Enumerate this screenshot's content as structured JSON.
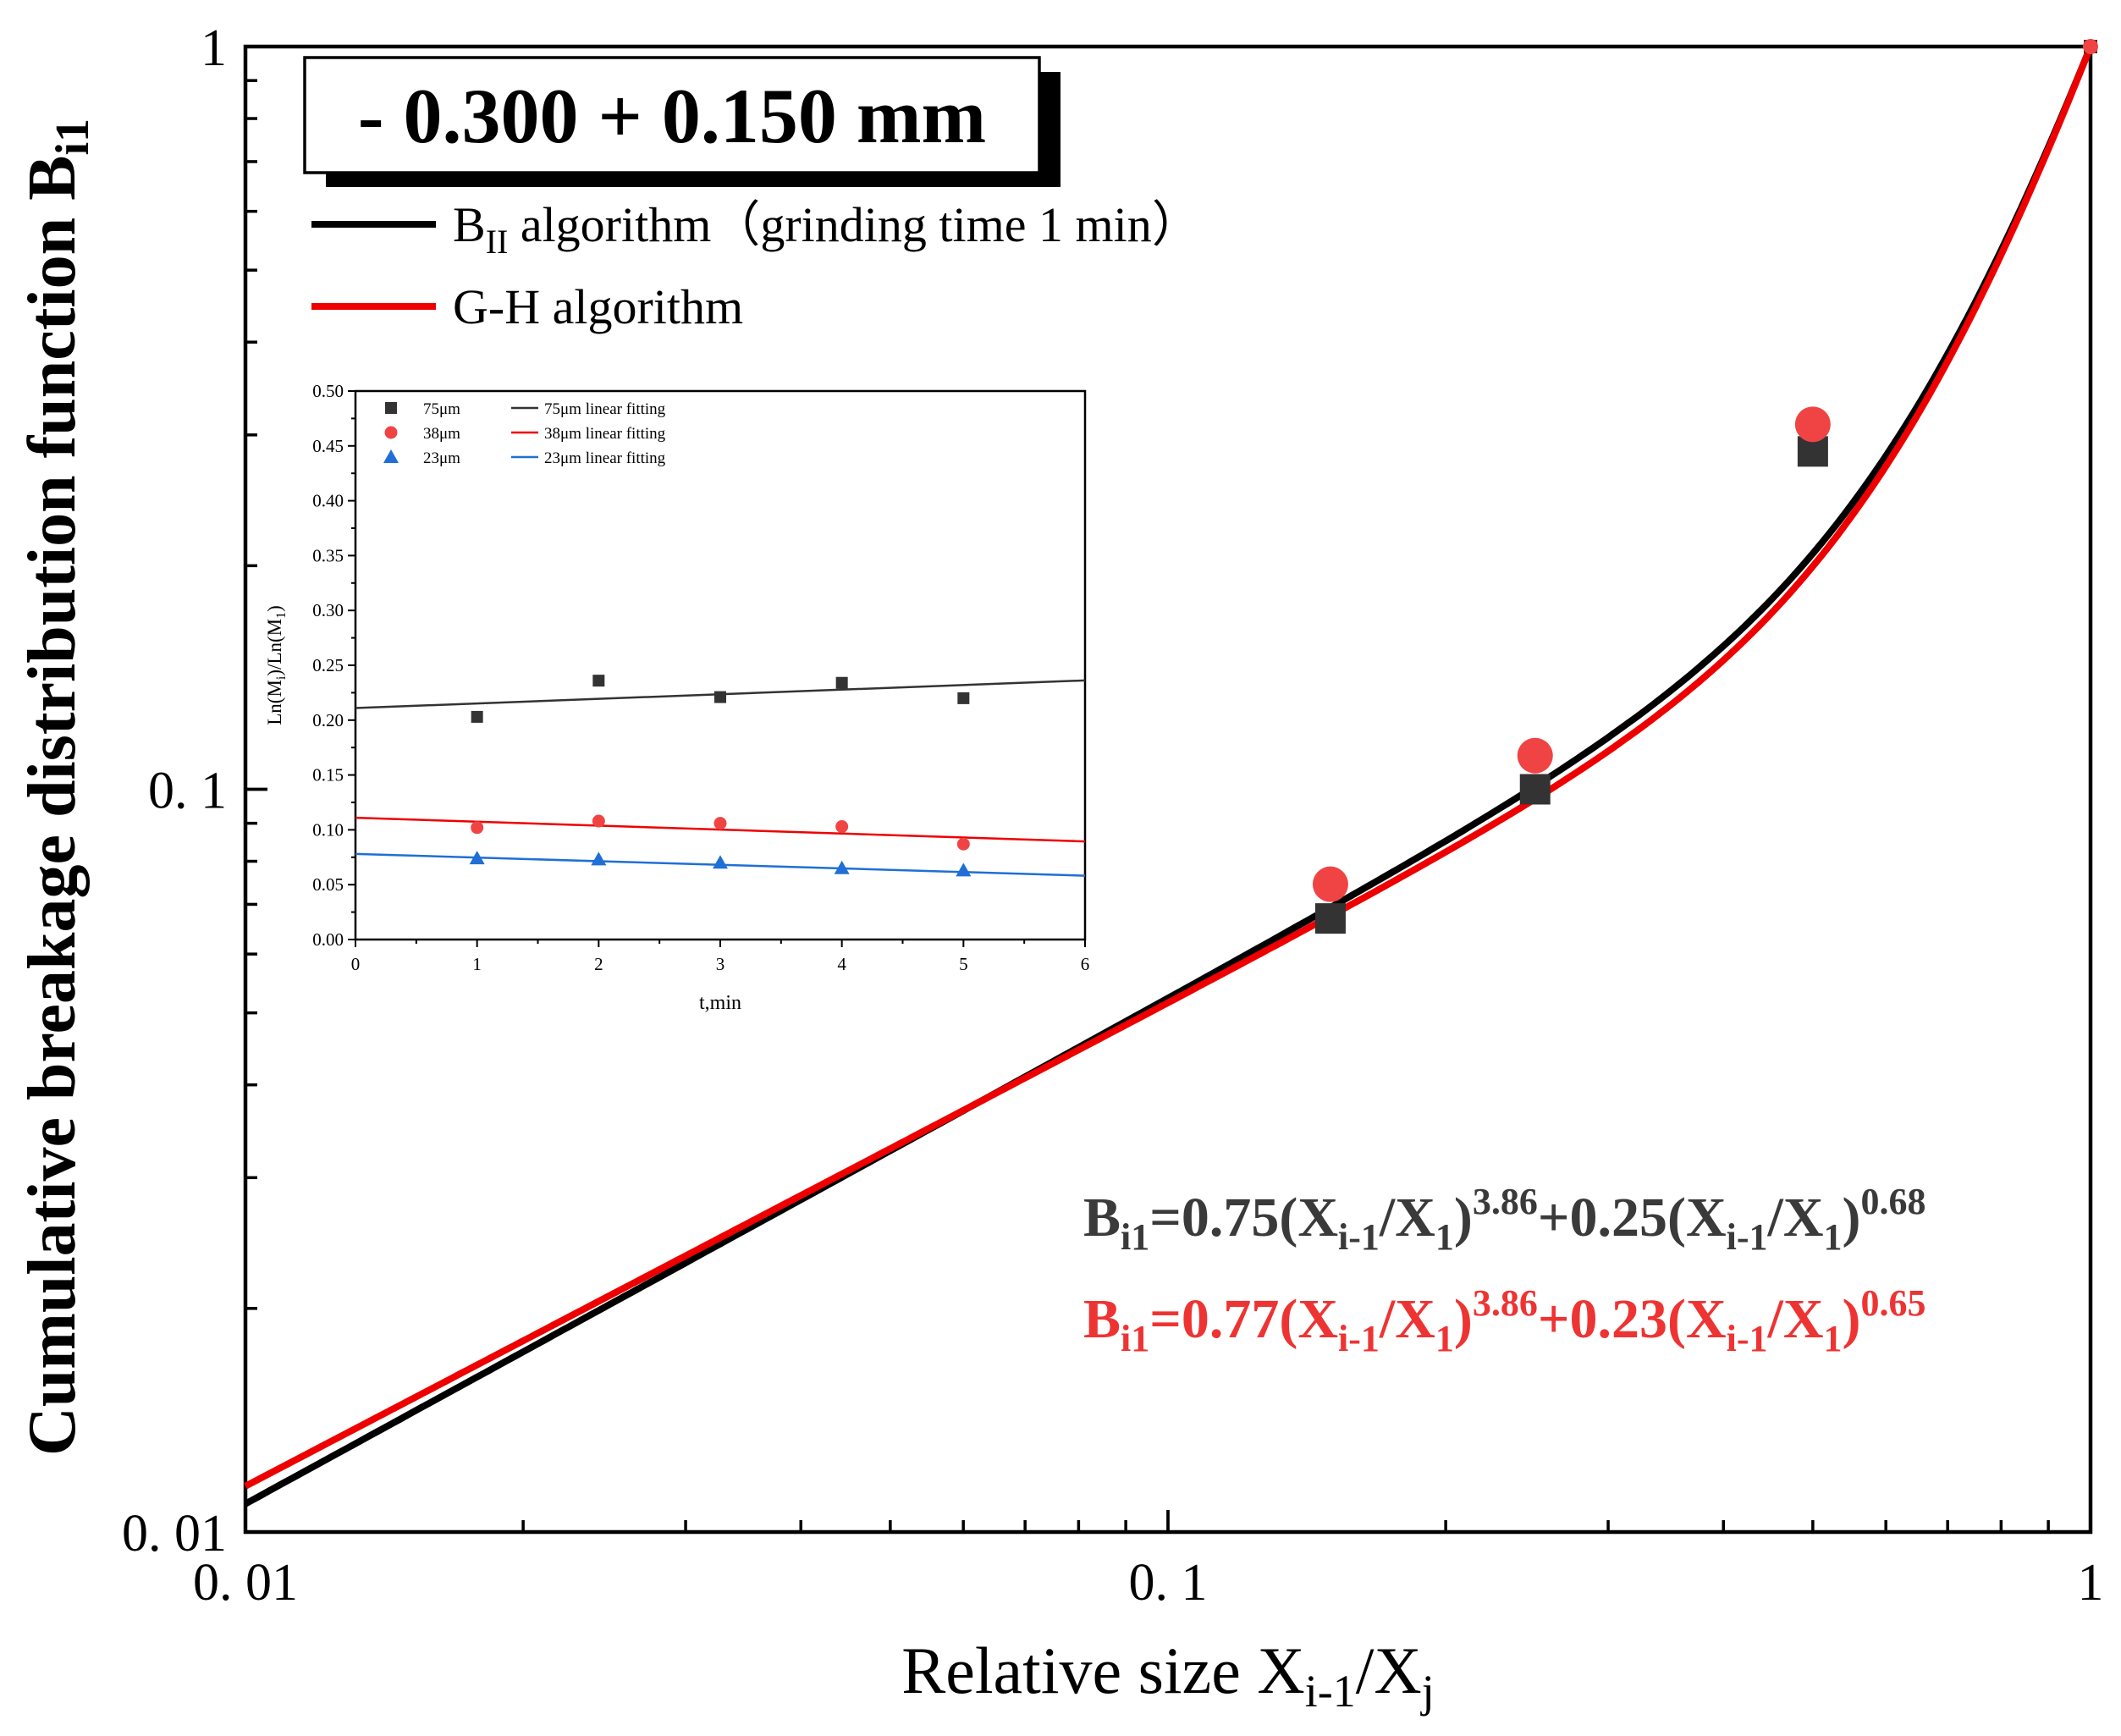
{
  "colors": {
    "black": "#000000",
    "red": "#ee0000",
    "dark_marker": "#333333",
    "red_marker": "#f04444",
    "blue": "#1f6fd6",
    "formula_gray": "#3a3a3a",
    "formula_red": "#ee3333"
  },
  "chart_data": [
    {
      "type": "line",
      "title": "",
      "xlabel": {
        "base": "Relative size X",
        "sub1": "i-1",
        "mid": "/X",
        "sub2": "j"
      },
      "ylabel": {
        "base": "Cumulative breakage distribution function B",
        "sub": "i1"
      },
      "xscale": "log",
      "yscale": "log",
      "xlim": [
        0.01,
        1
      ],
      "ylim": [
        0.01,
        1
      ],
      "x_ticks": [
        {
          "value": 0.01,
          "label": "0. 01"
        },
        {
          "value": 0.1,
          "label": "0. 1"
        },
        {
          "value": 1,
          "label": "1"
        }
      ],
      "y_ticks": [
        {
          "value": 0.01,
          "label": "0. 01"
        },
        {
          "value": 0.1,
          "label": "0. 1"
        },
        {
          "value": 1,
          "label": "1"
        }
      ],
      "grid": false,
      "size_label": "- 0.300 + 0.150 mm",
      "legend": {
        "placement": "top-left",
        "entries": [
          {
            "series": "bii",
            "base": "B",
            "sub": "II",
            "text": " algorithm（grinding time 1 min）"
          },
          {
            "series": "gh",
            "base": "",
            "sub": "",
            "text": "G-H algorithm"
          }
        ]
      },
      "series": [
        {
          "id": "bii",
          "color": "black",
          "model": {
            "a": 0.75,
            "p1": 3.86,
            "b": 0.25,
            "p2": 0.68
          },
          "points": [
            {
              "x": 0.15,
              "y": 0.067
            },
            {
              "x": 0.25,
              "y": 0.1
            },
            {
              "x": 0.5,
              "y": 0.285
            },
            {
              "x": 1,
              "y": 1
            }
          ]
        },
        {
          "id": "gh",
          "color": "red",
          "model": {
            "a": 0.77,
            "p1": 3.86,
            "b": 0.23,
            "p2": 0.65
          },
          "points": [
            {
              "x": 0.15,
              "y": 0.0745
            },
            {
              "x": 0.25,
              "y": 0.111
            },
            {
              "x": 0.5,
              "y": 0.31
            },
            {
              "x": 1,
              "y": 1
            }
          ]
        }
      ],
      "annotations": [
        {
          "id": "eq1",
          "color": "formula_gray",
          "parts": [
            {
              "t": "B",
              "s": "n"
            },
            {
              "t": "i1",
              "s": "sub"
            },
            {
              "t": "=0.75(X",
              "s": "n"
            },
            {
              "t": "i-1",
              "s": "sub"
            },
            {
              "t": "/X",
              "s": "n"
            },
            {
              "t": "1",
              "s": "sub"
            },
            {
              "t": ")",
              "s": "n"
            },
            {
              "t": "3.86",
              "s": "sup"
            },
            {
              "t": "+0.25(X",
              "s": "n"
            },
            {
              "t": "i-1",
              "s": "sub"
            },
            {
              "t": "/X",
              "s": "n"
            },
            {
              "t": "1",
              "s": "sub"
            },
            {
              "t": ")",
              "s": "n"
            },
            {
              "t": "0.68",
              "s": "sup"
            }
          ]
        },
        {
          "id": "eq2",
          "color": "formula_red",
          "parts": [
            {
              "t": "B",
              "s": "n"
            },
            {
              "t": "i1",
              "s": "sub"
            },
            {
              "t": "=0.77(X",
              "s": "n"
            },
            {
              "t": "i-1",
              "s": "sub"
            },
            {
              "t": "/X",
              "s": "n"
            },
            {
              "t": "1",
              "s": "sub"
            },
            {
              "t": ")",
              "s": "n"
            },
            {
              "t": "3.86",
              "s": "sup"
            },
            {
              "t": "+0.23(X",
              "s": "n"
            },
            {
              "t": "i-1",
              "s": "sub"
            },
            {
              "t": "/X",
              "s": "n"
            },
            {
              "t": "1",
              "s": "sub"
            },
            {
              "t": ")",
              "s": "n"
            },
            {
              "t": "0.65",
              "s": "sup"
            }
          ]
        }
      ]
    },
    {
      "type": "scatter",
      "title": "",
      "xlabel": "t,min",
      "ylabel": {
        "p1": "Ln(M",
        "s1": "i",
        "p2": ")/Ln(M",
        "s2": "1",
        "p3": ")"
      },
      "xlim": [
        0,
        6
      ],
      "ylim": [
        0,
        0.5
      ],
      "x_ticks": [
        "0",
        "1",
        "2",
        "3",
        "4",
        "5",
        "6"
      ],
      "y_ticks": [
        "0.00",
        "0.05",
        "0.10",
        "0.15",
        "0.20",
        "0.25",
        "0.30",
        "0.35",
        "0.40",
        "0.45",
        "0.50"
      ],
      "grid": false,
      "legend": {
        "placement": "top-left",
        "entries": [
          {
            "label": "75μm",
            "marker": "square",
            "color": "dark_marker"
          },
          {
            "label": "38μm",
            "marker": "circle",
            "color": "red_marker"
          },
          {
            "label": "23μm",
            "marker": "triangle",
            "color": "blue"
          }
        ],
        "line_entries": [
          {
            "label": "75μm linear fitting",
            "color": "dark_marker"
          },
          {
            "label": "38μm linear fitting",
            "color": "red"
          },
          {
            "label": "23μm linear fitting",
            "color": "blue"
          }
        ]
      },
      "series": [
        {
          "name": "75μm",
          "marker": "square",
          "color": "dark_marker",
          "x": [
            1,
            2,
            3,
            4,
            5
          ],
          "y": [
            0.203,
            0.236,
            0.221,
            0.234,
            0.22
          ],
          "fit": {
            "intercept": 0.211,
            "slope": 0.0042
          }
        },
        {
          "name": "38μm",
          "marker": "circle",
          "color": "red_marker",
          "x": [
            1,
            2,
            3,
            4,
            5
          ],
          "y": [
            0.102,
            0.108,
            0.106,
            0.103,
            0.087
          ],
          "fit": {
            "intercept": 0.111,
            "slope": -0.0036
          }
        },
        {
          "name": "23μm",
          "marker": "triangle",
          "color": "blue",
          "x": [
            1,
            2,
            3,
            4,
            5
          ],
          "y": [
            0.074,
            0.073,
            0.07,
            0.065,
            0.063
          ],
          "fit": {
            "intercept": 0.078,
            "slope": -0.0033
          }
        }
      ]
    }
  ]
}
